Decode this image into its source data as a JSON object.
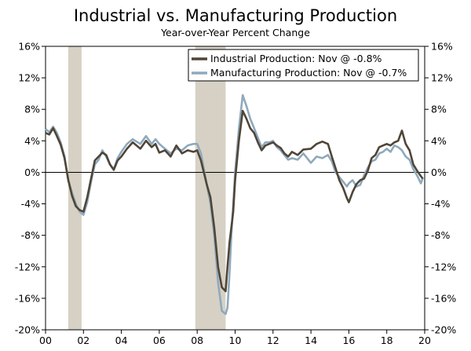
{
  "chart_data": {
    "type": "line",
    "title": "Industrial vs. Manufacturing Production",
    "subtitle": "Year-over-Year Percent Change",
    "x_range": [
      2000,
      2020
    ],
    "ylim": [
      -20,
      16
    ],
    "y_ticks": [
      16,
      12,
      8,
      4,
      0,
      -4,
      -8,
      -12,
      -16,
      -20
    ],
    "y_tick_labels_left": [
      "16%",
      "12%",
      "8%",
      "4%",
      "0%",
      "-4%",
      "-8%",
      "-12%",
      "-16%",
      "-20%"
    ],
    "y_tick_labels_right": [
      "16%",
      "12%",
      "8%",
      "4%",
      "0%",
      "-4%",
      "-8%",
      "-12%",
      "-16%",
      "-20%"
    ],
    "x_ticks": [
      2000,
      2002,
      2004,
      2006,
      2008,
      2010,
      2012,
      2014,
      2016,
      2018,
      2020
    ],
    "x_tick_labels": [
      "00",
      "02",
      "04",
      "06",
      "08",
      "10",
      "12",
      "14",
      "16",
      "18",
      "20"
    ],
    "recessions": [
      {
        "start": 2001.2,
        "end": 2001.9
      },
      {
        "start": 2007.9,
        "end": 2009.5
      }
    ],
    "zero_line": 0,
    "colors": {
      "industrial": "#4f4536",
      "manufacturing": "#8fa9bd",
      "recession": "#d6d1c4",
      "axis": "#000000"
    },
    "series": [
      {
        "name": "Industrial Production: Nov @ -0.8%",
        "color": "#4f4536",
        "points": [
          [
            2000.0,
            5.0
          ],
          [
            2000.2,
            4.8
          ],
          [
            2000.4,
            5.6
          ],
          [
            2000.6,
            4.6
          ],
          [
            2000.8,
            3.5
          ],
          [
            2001.0,
            1.8
          ],
          [
            2001.2,
            -1.0
          ],
          [
            2001.4,
            -3.0
          ],
          [
            2001.6,
            -4.3
          ],
          [
            2001.8,
            -4.8
          ],
          [
            2002.0,
            -5.0
          ],
          [
            2002.2,
            -3.2
          ],
          [
            2002.4,
            -0.8
          ],
          [
            2002.6,
            1.5
          ],
          [
            2002.8,
            2.0
          ],
          [
            2003.0,
            2.5
          ],
          [
            2003.2,
            2.2
          ],
          [
            2003.4,
            1.0
          ],
          [
            2003.6,
            0.3
          ],
          [
            2003.8,
            1.5
          ],
          [
            2004.0,
            2.0
          ],
          [
            2004.3,
            3.0
          ],
          [
            2004.6,
            3.8
          ],
          [
            2005.0,
            3.0
          ],
          [
            2005.3,
            4.0
          ],
          [
            2005.6,
            3.2
          ],
          [
            2005.8,
            3.6
          ],
          [
            2006.0,
            2.5
          ],
          [
            2006.3,
            2.8
          ],
          [
            2006.6,
            2.0
          ],
          [
            2006.9,
            3.4
          ],
          [
            2007.2,
            2.4
          ],
          [
            2007.5,
            2.8
          ],
          [
            2007.8,
            2.6
          ],
          [
            2008.0,
            2.8
          ],
          [
            2008.2,
            1.5
          ],
          [
            2008.5,
            -1.5
          ],
          [
            2008.7,
            -3.2
          ],
          [
            2008.9,
            -7.0
          ],
          [
            2009.1,
            -12.0
          ],
          [
            2009.3,
            -14.6
          ],
          [
            2009.5,
            -15.1
          ],
          [
            2009.6,
            -12.0
          ],
          [
            2009.7,
            -9.0
          ],
          [
            2009.8,
            -7.0
          ],
          [
            2009.9,
            -5.0
          ],
          [
            2010.0,
            -1.0
          ],
          [
            2010.2,
            4.0
          ],
          [
            2010.4,
            7.8
          ],
          [
            2010.6,
            6.8
          ],
          [
            2010.8,
            5.6
          ],
          [
            2011.0,
            5.0
          ],
          [
            2011.2,
            3.8
          ],
          [
            2011.4,
            2.8
          ],
          [
            2011.6,
            3.4
          ],
          [
            2011.8,
            3.6
          ],
          [
            2012.0,
            3.8
          ],
          [
            2012.2,
            3.4
          ],
          [
            2012.4,
            3.1
          ],
          [
            2012.6,
            2.4
          ],
          [
            2012.8,
            2.0
          ],
          [
            2013.0,
            2.6
          ],
          [
            2013.3,
            2.2
          ],
          [
            2013.6,
            2.9
          ],
          [
            2014.0,
            3.0
          ],
          [
            2014.3,
            3.6
          ],
          [
            2014.6,
            3.9
          ],
          [
            2014.9,
            3.6
          ],
          [
            2015.1,
            2.0
          ],
          [
            2015.3,
            0.5
          ],
          [
            2015.5,
            -1.0
          ],
          [
            2015.7,
            -2.0
          ],
          [
            2015.9,
            -3.3
          ],
          [
            2016.0,
            -3.8
          ],
          [
            2016.2,
            -2.5
          ],
          [
            2016.4,
            -1.5
          ],
          [
            2016.6,
            -1.0
          ],
          [
            2016.8,
            -0.8
          ],
          [
            2017.0,
            0.2
          ],
          [
            2017.2,
            1.8
          ],
          [
            2017.4,
            2.2
          ],
          [
            2017.6,
            3.2
          ],
          [
            2017.8,
            3.4
          ],
          [
            2018.0,
            3.6
          ],
          [
            2018.2,
            3.4
          ],
          [
            2018.4,
            3.8
          ],
          [
            2018.6,
            4.0
          ],
          [
            2018.8,
            5.3
          ],
          [
            2019.0,
            3.6
          ],
          [
            2019.2,
            2.8
          ],
          [
            2019.4,
            1.0
          ],
          [
            2019.6,
            0.2
          ],
          [
            2019.8,
            -0.5
          ],
          [
            2019.9,
            -0.8
          ]
        ]
      },
      {
        "name": "Manufacturing Production: Nov @ -0.7%",
        "color": "#8fa9bd",
        "points": [
          [
            2000.0,
            5.5
          ],
          [
            2000.2,
            5.1
          ],
          [
            2000.4,
            5.8
          ],
          [
            2000.6,
            5.0
          ],
          [
            2000.8,
            3.8
          ],
          [
            2001.0,
            2.0
          ],
          [
            2001.2,
            -1.0
          ],
          [
            2001.4,
            -2.6
          ],
          [
            2001.6,
            -4.0
          ],
          [
            2001.8,
            -5.0
          ],
          [
            2002.0,
            -5.4
          ],
          [
            2002.2,
            -3.8
          ],
          [
            2002.4,
            -1.2
          ],
          [
            2002.6,
            1.0
          ],
          [
            2002.8,
            1.6
          ],
          [
            2003.0,
            2.8
          ],
          [
            2003.2,
            2.0
          ],
          [
            2003.4,
            1.0
          ],
          [
            2003.6,
            0.4
          ],
          [
            2003.8,
            1.8
          ],
          [
            2004.0,
            2.6
          ],
          [
            2004.3,
            3.6
          ],
          [
            2004.6,
            4.2
          ],
          [
            2005.0,
            3.6
          ],
          [
            2005.3,
            4.6
          ],
          [
            2005.6,
            3.6
          ],
          [
            2005.8,
            4.2
          ],
          [
            2006.0,
            3.6
          ],
          [
            2006.3,
            3.0
          ],
          [
            2006.6,
            2.4
          ],
          [
            2006.9,
            3.0
          ],
          [
            2007.2,
            2.8
          ],
          [
            2007.5,
            3.4
          ],
          [
            2007.8,
            3.6
          ],
          [
            2008.0,
            3.6
          ],
          [
            2008.2,
            2.4
          ],
          [
            2008.5,
            -1.5
          ],
          [
            2008.7,
            -4.0
          ],
          [
            2008.9,
            -8.0
          ],
          [
            2009.1,
            -14.0
          ],
          [
            2009.3,
            -17.6
          ],
          [
            2009.5,
            -18.0
          ],
          [
            2009.6,
            -17.2
          ],
          [
            2009.7,
            -13.0
          ],
          [
            2009.8,
            -8.0
          ],
          [
            2009.9,
            -4.0
          ],
          [
            2010.0,
            0.0
          ],
          [
            2010.2,
            5.5
          ],
          [
            2010.4,
            9.8
          ],
          [
            2010.6,
            8.4
          ],
          [
            2010.8,
            6.8
          ],
          [
            2011.0,
            5.6
          ],
          [
            2011.2,
            4.4
          ],
          [
            2011.4,
            3.2
          ],
          [
            2011.6,
            3.8
          ],
          [
            2011.8,
            3.8
          ],
          [
            2012.0,
            4.0
          ],
          [
            2012.2,
            3.2
          ],
          [
            2012.4,
            2.8
          ],
          [
            2012.6,
            2.2
          ],
          [
            2012.8,
            1.6
          ],
          [
            2013.0,
            1.8
          ],
          [
            2013.3,
            1.6
          ],
          [
            2013.6,
            2.4
          ],
          [
            2014.0,
            1.2
          ],
          [
            2014.3,
            2.0
          ],
          [
            2014.6,
            1.8
          ],
          [
            2014.9,
            2.2
          ],
          [
            2015.1,
            1.4
          ],
          [
            2015.3,
            0.0
          ],
          [
            2015.5,
            -0.6
          ],
          [
            2015.7,
            -1.2
          ],
          [
            2015.9,
            -1.8
          ],
          [
            2016.0,
            -1.4
          ],
          [
            2016.2,
            -1.0
          ],
          [
            2016.4,
            -1.8
          ],
          [
            2016.6,
            -1.6
          ],
          [
            2016.8,
            -0.4
          ],
          [
            2017.0,
            0.6
          ],
          [
            2017.2,
            1.4
          ],
          [
            2017.4,
            1.6
          ],
          [
            2017.6,
            2.4
          ],
          [
            2017.8,
            2.6
          ],
          [
            2018.0,
            3.0
          ],
          [
            2018.2,
            2.6
          ],
          [
            2018.4,
            3.4
          ],
          [
            2018.6,
            3.2
          ],
          [
            2018.8,
            2.8
          ],
          [
            2019.0,
            2.0
          ],
          [
            2019.2,
            1.6
          ],
          [
            2019.4,
            0.4
          ],
          [
            2019.6,
            -0.4
          ],
          [
            2019.8,
            -1.4
          ],
          [
            2019.9,
            -0.7
          ]
        ]
      }
    ]
  }
}
